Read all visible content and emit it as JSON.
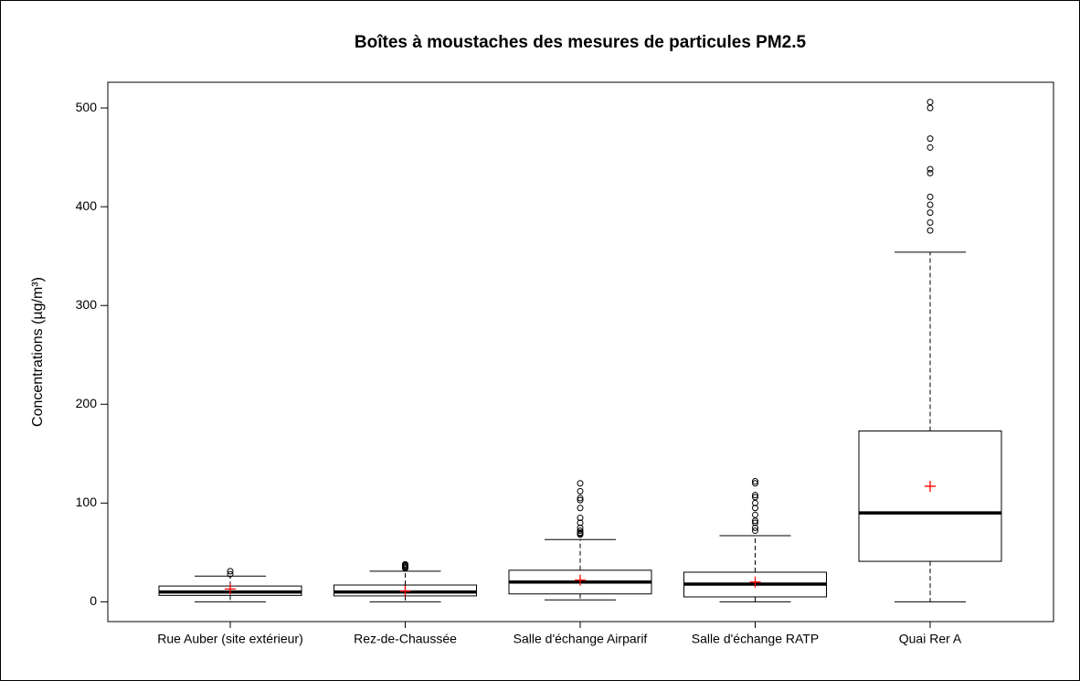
{
  "chart_data": {
    "type": "box",
    "title": "Boîtes à moustaches des mesures de particules PM2.5",
    "y_label": "Concentrations (µg/m³)",
    "categories": [
      "Rue Auber (site extérieur)",
      "Rez-de-Chaussée",
      "Salle d'échange Airparif",
      "Salle d'échange RATP",
      "Quai Rer A"
    ],
    "boxes": [
      {
        "whisker_low": 0,
        "q1": 6.5,
        "median": 10,
        "q3": 16,
        "whisker_high": 26,
        "mean": 13,
        "outliers": [
          28,
          31
        ]
      },
      {
        "whisker_low": 0,
        "q1": 6,
        "median": 10,
        "q3": 17,
        "whisker_high": 31,
        "mean": 11,
        "outliers": [
          34,
          35,
          36,
          37,
          38
        ]
      },
      {
        "whisker_low": 2,
        "q1": 8,
        "median": 20,
        "q3": 32,
        "whisker_high": 63,
        "mean": 22,
        "outliers": [
          68,
          69,
          70,
          72,
          75,
          80,
          85,
          95,
          103,
          105,
          112,
          120
        ]
      },
      {
        "whisker_low": 0,
        "q1": 5,
        "median": 18,
        "q3": 30,
        "whisker_high": 67,
        "mean": 20,
        "outliers": [
          72,
          75,
          80,
          82,
          88,
          95,
          100,
          106,
          108,
          120,
          122
        ]
      },
      {
        "whisker_low": 0,
        "q1": 41,
        "median": 90,
        "q3": 173,
        "whisker_high": 354,
        "mean": 117,
        "outliers": [
          376,
          384,
          394,
          402,
          410,
          434,
          438,
          460,
          469,
          500,
          506
        ]
      }
    ],
    "mean_color": "#ff0000",
    "ylim": [
      -20,
      526
    ],
    "yticks": [
      0,
      100,
      200,
      300,
      400,
      500
    ]
  }
}
